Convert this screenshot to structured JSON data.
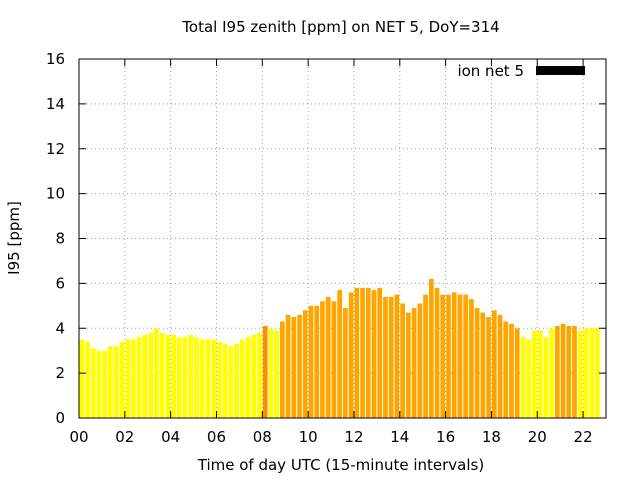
{
  "chart_data": {
    "type": "bar",
    "title": "Total I95 zenith [ppm] on NET 5, DoY=314",
    "xlabel": "Time of day UTC (15-minute intervals)",
    "ylabel": "I95 [ppm]",
    "xlim": [
      0,
      23
    ],
    "ylim": [
      0,
      16
    ],
    "xticks": [
      "00",
      "02",
      "04",
      "06",
      "08",
      "10",
      "12",
      "14",
      "16",
      "18",
      "20",
      "22"
    ],
    "yticks": [
      "0",
      "2",
      "4",
      "6",
      "8",
      "10",
      "12",
      "14",
      "16"
    ],
    "grid": true,
    "legend": {
      "label": "ion net 5",
      "color": "#000000",
      "position": "top-right"
    },
    "bar_width_hours": 0.25,
    "colors": {
      "low": "#ffff00",
      "high": "#ffa500",
      "highlight": "#ff8c00"
    },
    "values": [
      3.5,
      3.4,
      3.1,
      3.0,
      3.0,
      3.2,
      3.2,
      3.4,
      3.5,
      3.5,
      3.6,
      3.7,
      3.8,
      4.0,
      3.8,
      3.7,
      3.7,
      3.6,
      3.6,
      3.7,
      3.6,
      3.5,
      3.5,
      3.5,
      3.4,
      3.3,
      3.2,
      3.3,
      3.5,
      3.6,
      3.7,
      3.8,
      4.1,
      4.0,
      3.9,
      4.3,
      4.6,
      4.5,
      4.6,
      4.8,
      5.0,
      5.0,
      5.2,
      5.4,
      5.2,
      5.7,
      4.9,
      5.6,
      5.8,
      5.8,
      5.8,
      5.7,
      5.8,
      5.4,
      5.4,
      5.5,
      5.1,
      4.7,
      4.9,
      5.1,
      5.5,
      6.2,
      5.8,
      5.5,
      5.5,
      5.6,
      5.5,
      5.5,
      5.3,
      4.9,
      4.7,
      4.5,
      4.8,
      4.6,
      4.3,
      4.2,
      4.0,
      3.6,
      3.5,
      3.9,
      3.9,
      3.6,
      4.0,
      4.1,
      4.2,
      4.1,
      4.1,
      3.9,
      4.0,
      4.0,
      4.0
    ],
    "value_colors": [
      "low",
      "low",
      "low",
      "low",
      "low",
      "low",
      "low",
      "low",
      "low",
      "low",
      "low",
      "low",
      "low",
      "low",
      "low",
      "low",
      "low",
      "low",
      "low",
      "low",
      "low",
      "low",
      "low",
      "low",
      "low",
      "low",
      "low",
      "low",
      "low",
      "low",
      "low",
      "low",
      "highlight",
      "low",
      "low",
      "high",
      "high",
      "high",
      "high",
      "high",
      "high",
      "high",
      "high",
      "high",
      "high",
      "high",
      "high",
      "high",
      "high",
      "high",
      "high",
      "high",
      "high",
      "high",
      "high",
      "high",
      "high",
      "high",
      "high",
      "high",
      "high",
      "high",
      "high",
      "high",
      "high",
      "high",
      "high",
      "high",
      "high",
      "high",
      "high",
      "high",
      "high",
      "high",
      "high",
      "high",
      "high",
      "low",
      "low",
      "low",
      "low",
      "low",
      "low",
      "high",
      "high",
      "high",
      "high",
      "low",
      "low",
      "low",
      "low"
    ]
  }
}
